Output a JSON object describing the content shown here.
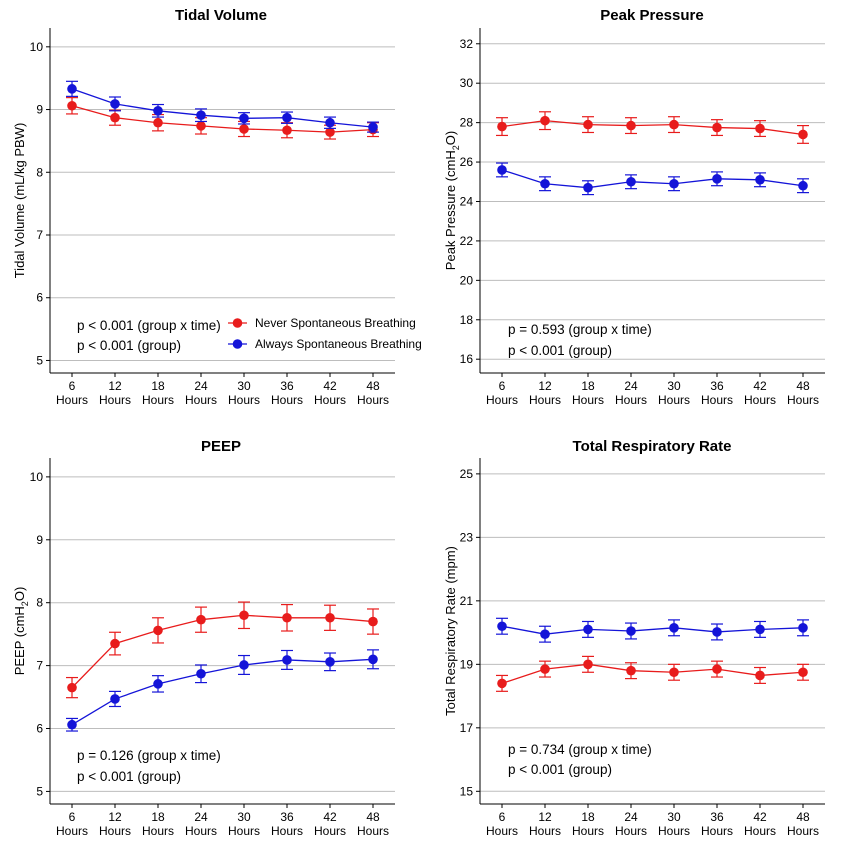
{
  "chart_data": [
    {
      "type": "line",
      "title": "Tidal Volume",
      "ylabel": "Tidal Volume (mL/kg PBW)",
      "ylim": [
        4.8,
        10.3
      ],
      "yticks": [
        5,
        6,
        7,
        8,
        9,
        10
      ],
      "categories": [
        "6",
        "12",
        "18",
        "24",
        "30",
        "36",
        "42",
        "48"
      ],
      "category_unit": "Hours",
      "grid": "horizontal",
      "series": [
        {
          "name": "Never Spontaneous Breathing",
          "color": "#e81c1c",
          "values": [
            9.06,
            8.87,
            8.79,
            8.74,
            8.69,
            8.67,
            8.64,
            8.68
          ],
          "errors": [
            0.13,
            0.12,
            0.13,
            0.13,
            0.12,
            0.12,
            0.11,
            0.11
          ]
        },
        {
          "name": "Always Spontaneous Breathing",
          "color": "#1414d8",
          "values": [
            9.33,
            9.09,
            8.98,
            8.91,
            8.86,
            8.87,
            8.79,
            8.72
          ],
          "errors": [
            0.12,
            0.11,
            0.1,
            0.1,
            0.09,
            0.09,
            0.09,
            0.08
          ]
        }
      ],
      "annotations": [
        "p < 0.001 (group x time)",
        "p < 0.001 (group)"
      ],
      "legend": "inside-bottom-right"
    },
    {
      "type": "line",
      "title": "Peak Pressure",
      "ylabel_main": "Peak Pressure (cmH",
      "ylabel_sub": "2",
      "ylabel_end": "O)",
      "ylim": [
        15.3,
        32.8
      ],
      "yticks": [
        16,
        18,
        20,
        22,
        24,
        26,
        28,
        30,
        32
      ],
      "categories": [
        "6",
        "12",
        "18",
        "24",
        "30",
        "36",
        "42",
        "48"
      ],
      "category_unit": "Hours",
      "grid": "horizontal",
      "series": [
        {
          "name": "Never Spontaneous Breathing",
          "color": "#e81c1c",
          "values": [
            27.8,
            28.1,
            27.9,
            27.85,
            27.9,
            27.75,
            27.7,
            27.4
          ],
          "errors": [
            0.45,
            0.45,
            0.4,
            0.4,
            0.4,
            0.4,
            0.4,
            0.45
          ]
        },
        {
          "name": "Always Spontaneous Breathing",
          "color": "#1414d8",
          "values": [
            25.6,
            24.9,
            24.7,
            25.0,
            24.9,
            25.15,
            25.1,
            24.8
          ],
          "errors": [
            0.35,
            0.35,
            0.35,
            0.35,
            0.35,
            0.35,
            0.35,
            0.35
          ]
        }
      ],
      "annotations": [
        "p = 0.593 (group x time)",
        "p < 0.001 (group)"
      ]
    },
    {
      "type": "line",
      "title": "PEEP",
      "ylabel_main": "PEEP (cmH",
      "ylabel_sub": "2",
      "ylabel_end": "O)",
      "ylim": [
        4.8,
        10.3
      ],
      "yticks": [
        5,
        6,
        7,
        8,
        9,
        10
      ],
      "categories": [
        "6",
        "12",
        "18",
        "24",
        "30",
        "36",
        "42",
        "48"
      ],
      "category_unit": "Hours",
      "grid": "horizontal",
      "series": [
        {
          "name": "Never Spontaneous Breathing",
          "color": "#e81c1c",
          "values": [
            6.65,
            7.35,
            7.56,
            7.73,
            7.8,
            7.76,
            7.76,
            7.7
          ],
          "errors": [
            0.16,
            0.18,
            0.2,
            0.2,
            0.21,
            0.21,
            0.2,
            0.2
          ]
        },
        {
          "name": "Always Spontaneous Breathing",
          "color": "#1414d8",
          "values": [
            6.06,
            6.47,
            6.71,
            6.87,
            7.01,
            7.09,
            7.06,
            7.1
          ],
          "errors": [
            0.1,
            0.12,
            0.13,
            0.14,
            0.15,
            0.15,
            0.14,
            0.15
          ]
        }
      ],
      "annotations": [
        "p = 0.126 (group x time)",
        "p < 0.001 (group)"
      ]
    },
    {
      "type": "line",
      "title": "Total Respiratory Rate",
      "ylabel": "Total Respiratory Rate (mpm)",
      "ylim": [
        14.6,
        25.5
      ],
      "yticks": [
        15,
        17,
        19,
        21,
        23,
        25
      ],
      "categories": [
        "6",
        "12",
        "18",
        "24",
        "30",
        "36",
        "42",
        "48"
      ],
      "category_unit": "Hours",
      "grid": "horizontal",
      "series": [
        {
          "name": "Never Spontaneous Breathing",
          "color": "#e81c1c",
          "values": [
            18.4,
            18.85,
            19.0,
            18.8,
            18.75,
            18.85,
            18.65,
            18.75
          ],
          "errors": [
            0.25,
            0.25,
            0.25,
            0.25,
            0.25,
            0.25,
            0.25,
            0.25
          ]
        },
        {
          "name": "Always Spontaneous Breathing",
          "color": "#1414d8",
          "values": [
            20.2,
            19.95,
            20.1,
            20.05,
            20.15,
            20.02,
            20.1,
            20.15
          ],
          "errors": [
            0.25,
            0.25,
            0.25,
            0.25,
            0.25,
            0.25,
            0.25,
            0.25
          ]
        }
      ],
      "annotations": [
        "p = 0.734 (group x time)",
        "p < 0.001 (group)"
      ]
    }
  ]
}
